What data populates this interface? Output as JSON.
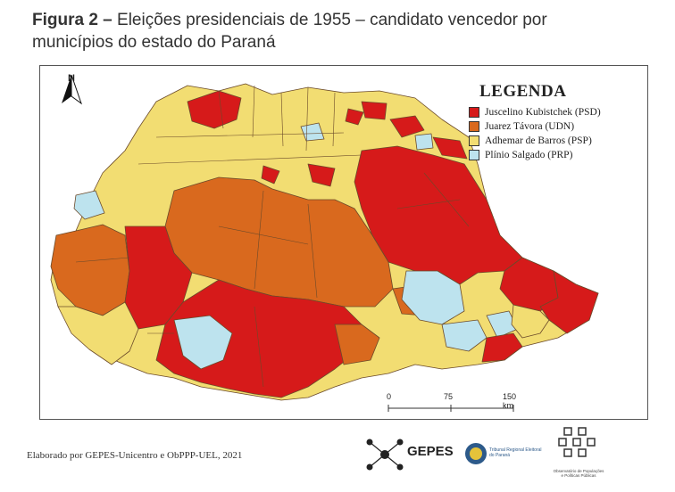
{
  "caption": {
    "figure_label": "Figura 2 –",
    "title_line1": " Eleições presidenciais de 1955 – candidato vencedor por",
    "title_line2": "municípios do estado do Paraná"
  },
  "map": {
    "north_label": "N",
    "legend": {
      "title": "LEGENDA",
      "items": [
        {
          "label": "Juscelino Kubistchek (PSD)",
          "color": "#d61a1a"
        },
        {
          "label": "Juarez Távora (UDN)",
          "color": "#d9691e"
        },
        {
          "label": "Adhemar de Barros (PSP)",
          "color": "#f2dd72"
        },
        {
          "label": "Plínio Salgado (PRP)",
          "color": "#bde3ee"
        }
      ]
    },
    "scale": {
      "ticks": [
        "0",
        "75",
        "150 km"
      ]
    }
  },
  "footer": {
    "credit": "Elaborado por GEPES-Unicentro e ObPPP-UEL, 2021",
    "logo_gepes": "GEPES",
    "logo_tre": "Tribunal Regional Eleitoral do Paraná",
    "logo_obs": "Observatório de Populações e Políticas Públicas"
  }
}
